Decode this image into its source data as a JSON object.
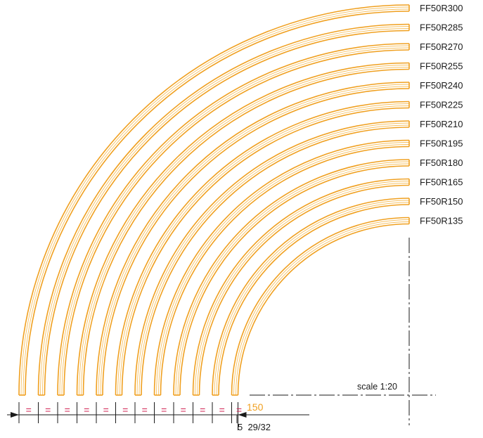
{
  "drawing": {
    "curves": [
      {
        "label": "FF50R300",
        "radius": 300
      },
      {
        "label": "FF50R285",
        "radius": 285
      },
      {
        "label": "FF50R270",
        "radius": 270
      },
      {
        "label": "FF50R255",
        "radius": 255
      },
      {
        "label": "FF50R240",
        "radius": 240
      },
      {
        "label": "FF50R225",
        "radius": 225
      },
      {
        "label": "FF50R210",
        "radius": 210
      },
      {
        "label": "FF50R195",
        "radius": 195
      },
      {
        "label": "FF50R180",
        "radius": 180
      },
      {
        "label": "FF50R165",
        "radius": 165
      },
      {
        "label": "FF50R150",
        "radius": 150
      },
      {
        "label": "FF50R135",
        "radius": 135
      }
    ],
    "scale_label": "scale 1:20",
    "spacing_dimension": "150",
    "gap_dimension": "5  29/32",
    "equal_mark": "=",
    "colors": {
      "tray": "#f0a020",
      "tray_inner": "#f6c060",
      "equal_mark": "#d02050",
      "lines": "#1a1a1a"
    }
  }
}
